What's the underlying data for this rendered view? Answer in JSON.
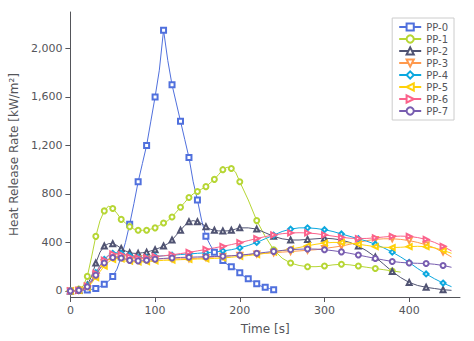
{
  "chart_data": {
    "type": "line",
    "xlabel": "Time [s]",
    "ylabel": "Heat Release Rate [kW/m²]",
    "xlim": [
      0,
      460
    ],
    "ylim": [
      -50,
      2300
    ],
    "xticks": [
      0,
      100,
      200,
      300,
      400
    ],
    "yticks": [
      0,
      400,
      800,
      1200,
      1600,
      2000
    ],
    "grid": false,
    "legend": "upper right",
    "series": [
      {
        "name": "PP-0",
        "marker": "square",
        "x": [
          0,
          5,
          10,
          15,
          20,
          25,
          30,
          35,
          40,
          45,
          50,
          55,
          60,
          65,
          70,
          75,
          80,
          85,
          90,
          95,
          100,
          105,
          110,
          115,
          120,
          125,
          130,
          135,
          140,
          145,
          150,
          155,
          160,
          165,
          170,
          175,
          180,
          185,
          190,
          195,
          200,
          205,
          210,
          215,
          220,
          225,
          230,
          235,
          240
        ],
        "values": [
          0,
          2,
          3,
          5,
          8,
          12,
          20,
          35,
          55,
          80,
          120,
          180,
          280,
          400,
          550,
          720,
          900,
          1050,
          1200,
          1400,
          1600,
          1820,
          2150,
          1900,
          1700,
          1550,
          1400,
          1250,
          1100,
          900,
          750,
          580,
          450,
          380,
          320,
          280,
          250,
          220,
          200,
          180,
          150,
          120,
          100,
          80,
          60,
          40,
          30,
          20,
          10
        ]
      },
      {
        "name": "PP-1",
        "marker": "circle",
        "x": [
          0,
          5,
          10,
          15,
          20,
          25,
          30,
          35,
          40,
          45,
          50,
          55,
          60,
          65,
          70,
          75,
          80,
          85,
          90,
          95,
          100,
          105,
          110,
          115,
          120,
          125,
          130,
          135,
          140,
          145,
          150,
          155,
          160,
          165,
          170,
          175,
          180,
          185,
          190,
          195,
          200,
          210,
          220,
          230,
          240,
          250,
          260,
          270,
          280,
          290,
          300,
          310,
          320,
          330,
          340,
          350,
          360,
          370,
          380,
          390
        ],
        "values": [
          0,
          5,
          15,
          40,
          120,
          280,
          450,
          580,
          660,
          700,
          680,
          640,
          590,
          560,
          530,
          510,
          500,
          500,
          500,
          510,
          520,
          540,
          560,
          580,
          610,
          650,
          690,
          730,
          770,
          800,
          820,
          840,
          860,
          890,
          920,
          960,
          1000,
          1020,
          1010,
          980,
          900,
          750,
          580,
          450,
          340,
          270,
          230,
          210,
          200,
          200,
          205,
          215,
          220,
          215,
          205,
          195,
          185,
          175,
          165,
          155
        ]
      },
      {
        "name": "PP-2",
        "marker": "triangle-up",
        "x": [
          0,
          5,
          10,
          15,
          20,
          25,
          30,
          35,
          40,
          45,
          50,
          55,
          60,
          65,
          70,
          75,
          80,
          85,
          90,
          95,
          100,
          105,
          110,
          115,
          120,
          125,
          130,
          135,
          140,
          145,
          150,
          155,
          160,
          165,
          170,
          175,
          180,
          185,
          190,
          195,
          200,
          210,
          220,
          230,
          240,
          250,
          260,
          270,
          280,
          290,
          300,
          310,
          320,
          330,
          340,
          350,
          360,
          370,
          380,
          390,
          400,
          410,
          420,
          430,
          440,
          450
        ],
        "values": [
          0,
          2,
          5,
          15,
          50,
          120,
          230,
          320,
          370,
          390,
          390,
          375,
          350,
          330,
          315,
          310,
          310,
          315,
          320,
          330,
          340,
          355,
          370,
          390,
          420,
          460,
          500,
          540,
          570,
          580,
          570,
          555,
          530,
          510,
          500,
          495,
          495,
          495,
          500,
          510,
          520,
          520,
          510,
          480,
          450,
          430,
          420,
          420,
          425,
          430,
          435,
          430,
          420,
          400,
          370,
          330,
          280,
          220,
          160,
          110,
          70,
          45,
          30,
          20,
          10,
          5
        ]
      },
      {
        "name": "PP-3",
        "marker": "triangle-down",
        "x": [
          0,
          5,
          10,
          15,
          20,
          25,
          30,
          35,
          40,
          45,
          50,
          55,
          60,
          65,
          70,
          75,
          80,
          85,
          90,
          95,
          100,
          110,
          120,
          130,
          140,
          150,
          160,
          170,
          180,
          190,
          200,
          210,
          220,
          230,
          240,
          250,
          260,
          270,
          280,
          290,
          300,
          310,
          320,
          330,
          340,
          350,
          360,
          370,
          380,
          390,
          400,
          410,
          420,
          430,
          440,
          450
        ],
        "values": [
          0,
          2,
          5,
          15,
          40,
          80,
          130,
          185,
          230,
          265,
          280,
          285,
          280,
          270,
          265,
          265,
          265,
          265,
          265,
          265,
          265,
          265,
          265,
          265,
          265,
          270,
          275,
          280,
          285,
          290,
          295,
          300,
          305,
          310,
          315,
          320,
          325,
          330,
          335,
          340,
          350,
          360,
          370,
          385,
          400,
          415,
          425,
          430,
          430,
          425,
          415,
          400,
          380,
          355,
          320,
          280
        ]
      },
      {
        "name": "PP-4",
        "marker": "diamond",
        "x": [
          0,
          5,
          10,
          15,
          20,
          25,
          30,
          35,
          40,
          45,
          50,
          55,
          60,
          65,
          70,
          75,
          80,
          85,
          90,
          95,
          100,
          110,
          120,
          130,
          140,
          150,
          160,
          170,
          180,
          190,
          200,
          210,
          220,
          230,
          240,
          250,
          260,
          270,
          280,
          290,
          300,
          310,
          320,
          330,
          340,
          350,
          360,
          370,
          380,
          390,
          400,
          410,
          420,
          430,
          440,
          450
        ],
        "values": [
          0,
          2,
          5,
          15,
          45,
          90,
          150,
          210,
          260,
          295,
          310,
          315,
          310,
          300,
          290,
          280,
          275,
          275,
          275,
          280,
          285,
          290,
          295,
          300,
          305,
          310,
          315,
          320,
          330,
          340,
          355,
          375,
          400,
          430,
          460,
          490,
          510,
          520,
          520,
          515,
          505,
          490,
          470,
          450,
          430,
          410,
          385,
          355,
          320,
          280,
          235,
          185,
          140,
          100,
          65,
          35
        ]
      },
      {
        "name": "PP-5",
        "marker": "triangle-left",
        "x": [
          0,
          5,
          10,
          15,
          20,
          25,
          30,
          35,
          40,
          45,
          50,
          55,
          60,
          65,
          70,
          75,
          80,
          85,
          90,
          95,
          100,
          110,
          120,
          130,
          140,
          150,
          160,
          170,
          180,
          190,
          200,
          210,
          220,
          230,
          240,
          250,
          260,
          270,
          280,
          290,
          300,
          310,
          320,
          330,
          340,
          350,
          360,
          370,
          380,
          390,
          400,
          410,
          420,
          430,
          440,
          450
        ],
        "values": [
          0,
          2,
          5,
          10,
          30,
          65,
          110,
          160,
          205,
          240,
          260,
          268,
          265,
          255,
          245,
          240,
          240,
          240,
          242,
          245,
          248,
          252,
          255,
          258,
          260,
          263,
          265,
          268,
          272,
          278,
          285,
          292,
          300,
          310,
          320,
          332,
          345,
          358,
          372,
          385,
          395,
          400,
          400,
          395,
          385,
          375,
          365,
          360,
          358,
          360,
          365,
          368,
          365,
          355,
          335,
          310
        ]
      },
      {
        "name": "PP-6",
        "marker": "triangle-right",
        "x": [
          0,
          5,
          10,
          15,
          20,
          25,
          30,
          35,
          40,
          45,
          50,
          55,
          60,
          65,
          70,
          75,
          80,
          85,
          90,
          95,
          100,
          110,
          120,
          130,
          140,
          150,
          160,
          170,
          180,
          190,
          200,
          210,
          220,
          230,
          240,
          250,
          260,
          270,
          280,
          290,
          300,
          310,
          320,
          330,
          340,
          350,
          360,
          370,
          380,
          390,
          400,
          410,
          420,
          430,
          440,
          450
        ],
        "values": [
          0,
          2,
          5,
          15,
          40,
          85,
          145,
          205,
          255,
          290,
          305,
          308,
          300,
          290,
          280,
          275,
          272,
          272,
          274,
          278,
          283,
          290,
          298,
          308,
          318,
          330,
          342,
          355,
          368,
          382,
          398,
          415,
          432,
          448,
          462,
          472,
          478,
          480,
          478,
          472,
          462,
          452,
          442,
          435,
          432,
          433,
          438,
          445,
          450,
          452,
          450,
          440,
          425,
          400,
          368,
          330
        ]
      },
      {
        "name": "PP-7",
        "marker": "circle",
        "x": [
          0,
          5,
          10,
          15,
          20,
          25,
          30,
          35,
          40,
          45,
          50,
          55,
          60,
          65,
          70,
          75,
          80,
          85,
          90,
          95,
          100,
          110,
          120,
          130,
          140,
          150,
          160,
          170,
          180,
          190,
          200,
          210,
          220,
          230,
          240,
          250,
          260,
          270,
          280,
          290,
          300,
          310,
          320,
          330,
          340,
          350,
          360,
          370,
          380,
          390,
          400,
          410,
          420,
          430,
          440,
          450
        ],
        "values": [
          0,
          2,
          5,
          12,
          35,
          75,
          130,
          185,
          230,
          260,
          275,
          278,
          272,
          262,
          252,
          248,
          248,
          250,
          253,
          257,
          262,
          268,
          272,
          276,
          278,
          280,
          282,
          284,
          286,
          290,
          295,
          302,
          310,
          318,
          326,
          334,
          340,
          344,
          346,
          345,
          340,
          332,
          322,
          310,
          296,
          282,
          268,
          255,
          243,
          235,
          230,
          228,
          226,
          220,
          210,
          195
        ]
      }
    ]
  }
}
